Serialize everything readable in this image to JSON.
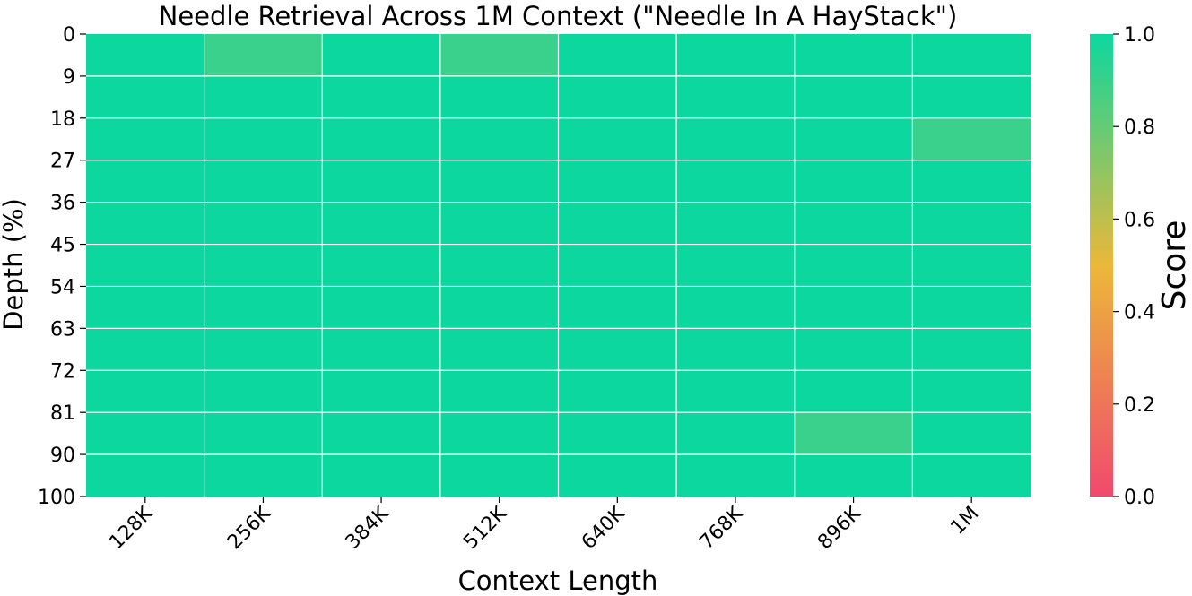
{
  "chart_data": {
    "type": "heatmap",
    "title": "Needle Retrieval Across 1M Context (\"Needle In A HayStack\")",
    "xlabel": "Context Length",
    "ylabel": "Depth (%)",
    "colorbar_label": "Score",
    "x_categories": [
      "128K",
      "256K",
      "384K",
      "512K",
      "640K",
      "768K",
      "896K",
      "1M"
    ],
    "y_tick_labels": [
      "0",
      "9",
      "18",
      "27",
      "36",
      "45",
      "54",
      "63",
      "72",
      "81",
      "90",
      "100"
    ],
    "row_count": 11,
    "values": [
      [
        1.0,
        0.9,
        1.0,
        0.9,
        1.0,
        1.0,
        1.0,
        1.0
      ],
      [
        1.0,
        1.0,
        1.0,
        1.0,
        1.0,
        1.0,
        1.0,
        1.0
      ],
      [
        1.0,
        1.0,
        1.0,
        1.0,
        1.0,
        1.0,
        1.0,
        0.9
      ],
      [
        1.0,
        1.0,
        1.0,
        1.0,
        1.0,
        1.0,
        1.0,
        1.0
      ],
      [
        1.0,
        1.0,
        1.0,
        1.0,
        1.0,
        1.0,
        1.0,
        1.0
      ],
      [
        1.0,
        1.0,
        1.0,
        1.0,
        1.0,
        1.0,
        1.0,
        1.0
      ],
      [
        1.0,
        1.0,
        1.0,
        1.0,
        1.0,
        1.0,
        1.0,
        1.0
      ],
      [
        1.0,
        1.0,
        1.0,
        1.0,
        1.0,
        1.0,
        1.0,
        1.0
      ],
      [
        1.0,
        1.0,
        1.0,
        1.0,
        1.0,
        1.0,
        1.0,
        1.0
      ],
      [
        1.0,
        1.0,
        1.0,
        1.0,
        1.0,
        1.0,
        0.9,
        1.0
      ],
      [
        1.0,
        1.0,
        1.0,
        1.0,
        1.0,
        1.0,
        1.0,
        1.0
      ]
    ],
    "color_range": [
      0.0,
      1.0
    ],
    "colorbar_ticks": [
      "0.0",
      "0.2",
      "0.4",
      "0.6",
      "0.8",
      "1.0"
    ],
    "colormap": [
      "#f0496e",
      "#ebb839",
      "#0cd79f"
    ],
    "cell_line_color": "#ffffff",
    "grid": false
  }
}
